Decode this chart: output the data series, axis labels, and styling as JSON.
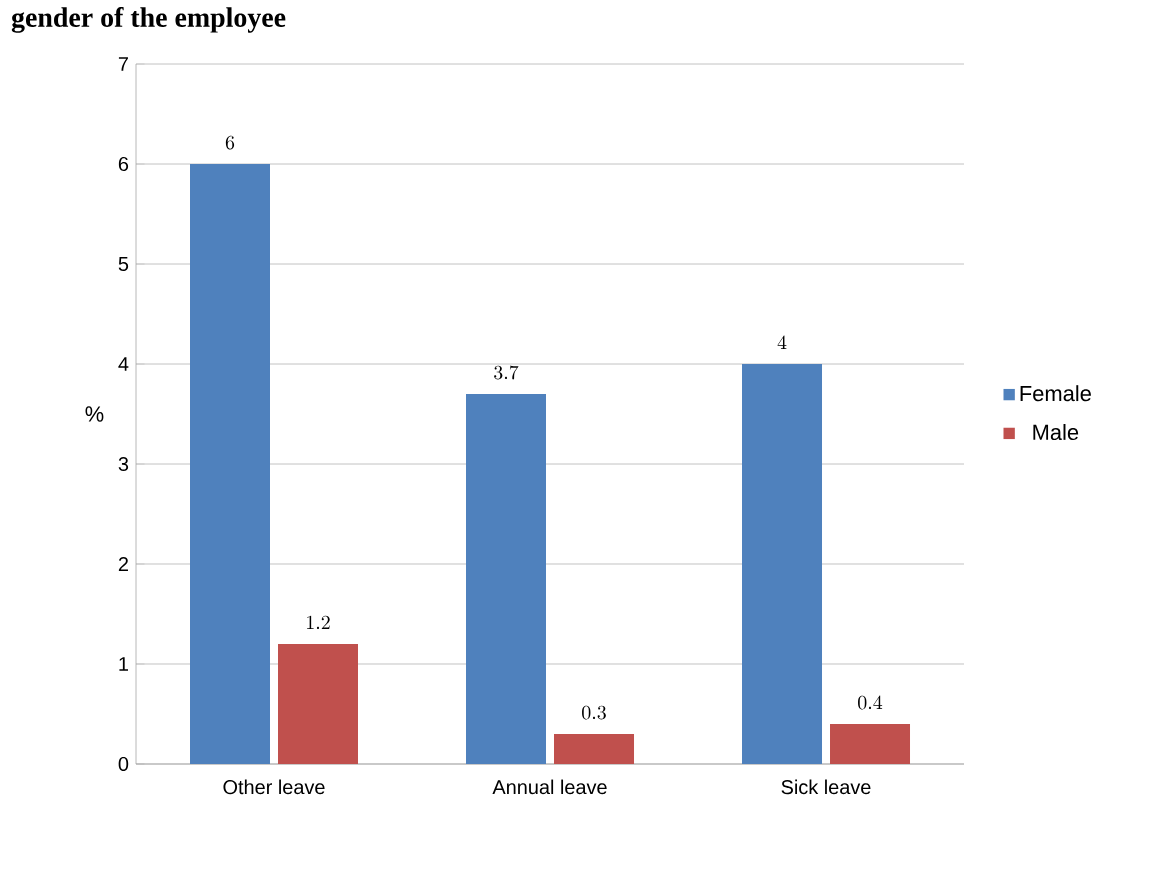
{
  "chart_data": {
    "type": "bar",
    "title": "gender of the employee",
    "ylabel": "%",
    "categories": [
      "Other leave",
      "Annual leave",
      "Sick leave"
    ],
    "series": [
      {
        "name": "Female",
        "color": "#4f81bd",
        "values": [
          6,
          3.7,
          4
        ]
      },
      {
        "name": "Male",
        "color": "#c0504d",
        "values": [
          1.2,
          0.3,
          0.4
        ]
      }
    ],
    "ylim": [
      0,
      7
    ],
    "yticks": [
      0,
      1,
      2,
      3,
      4,
      5,
      6,
      7
    ],
    "grid": "y",
    "legend": "right",
    "data_labels": true
  }
}
